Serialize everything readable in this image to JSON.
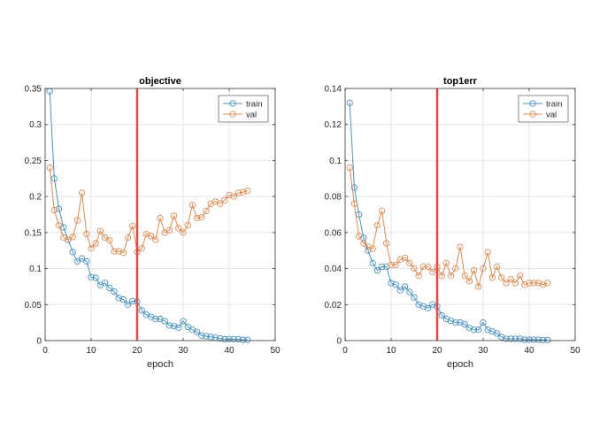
{
  "colors": {
    "train": "#4a90bd",
    "val": "#d98b55",
    "marker_line": "#e8474a",
    "grid": "#e6e6e6",
    "axis": "#333333",
    "text": "#262626"
  },
  "chart_data": [
    {
      "type": "line",
      "title": "objective",
      "xlabel": "epoch",
      "ylabel": "",
      "xlim": [
        0,
        50
      ],
      "ylim": [
        0,
        0.35
      ],
      "xticks": [
        0,
        10,
        20,
        30,
        40,
        50
      ],
      "yticks": [
        0,
        0.05,
        0.1,
        0.15,
        0.2,
        0.25,
        0.3,
        0.35
      ],
      "xtick_labels": [
        "0",
        "10",
        "20",
        "30",
        "40",
        "50"
      ],
      "ytick_labels": [
        "0",
        "0.05",
        "0.1",
        "0.15",
        "0.2",
        "0.25",
        "0.3",
        "0.35"
      ],
      "grid": true,
      "legend": "top-right",
      "vertical_marker_x": 20,
      "x": [
        1,
        2,
        3,
        4,
        5,
        6,
        7,
        8,
        9,
        10,
        11,
        12,
        13,
        14,
        15,
        16,
        17,
        18,
        19,
        20,
        21,
        22,
        23,
        24,
        25,
        26,
        27,
        28,
        29,
        30,
        31,
        32,
        33,
        34,
        35,
        36,
        37,
        38,
        39,
        40,
        41,
        42,
        43,
        44
      ],
      "series": [
        {
          "name": "train",
          "values": [
            0.346,
            0.225,
            0.183,
            0.157,
            0.14,
            0.123,
            0.11,
            0.114,
            0.11,
            0.088,
            0.087,
            0.077,
            0.08,
            0.073,
            0.068,
            0.059,
            0.057,
            0.05,
            0.055,
            0.054,
            0.042,
            0.036,
            0.033,
            0.03,
            0.03,
            0.027,
            0.021,
            0.02,
            0.018,
            0.027,
            0.019,
            0.015,
            0.012,
            0.007,
            0.006,
            0.005,
            0.004,
            0.003,
            0.002,
            0.002,
            0.002,
            0.002,
            0.001,
            0.001
          ]
        },
        {
          "name": "val",
          "values": [
            0.24,
            0.181,
            0.16,
            0.143,
            0.14,
            0.144,
            0.167,
            0.205,
            0.148,
            0.128,
            0.135,
            0.152,
            0.143,
            0.139,
            0.124,
            0.124,
            0.122,
            0.143,
            0.159,
            0.123,
            0.128,
            0.148,
            0.145,
            0.14,
            0.17,
            0.15,
            0.153,
            0.173,
            0.156,
            0.15,
            0.16,
            0.188,
            0.17,
            0.171,
            0.18,
            0.19,
            0.193,
            0.19,
            0.195,
            0.202,
            0.2,
            0.205,
            0.206,
            0.208
          ]
        }
      ]
    },
    {
      "type": "line",
      "title": "top1err",
      "xlabel": "epoch",
      "ylabel": "",
      "xlim": [
        0,
        50
      ],
      "ylim": [
        0,
        0.14
      ],
      "xticks": [
        0,
        10,
        20,
        30,
        40,
        50
      ],
      "yticks": [
        0,
        0.02,
        0.04,
        0.06,
        0.08,
        0.1,
        0.12,
        0.14
      ],
      "xtick_labels": [
        "0",
        "10",
        "20",
        "30",
        "40",
        "50"
      ],
      "ytick_labels": [
        "0",
        "0.02",
        "0.04",
        "0.06",
        "0.08",
        "0.1",
        "0.12",
        "0.14"
      ],
      "grid": true,
      "legend": "top-right",
      "vertical_marker_x": 20,
      "x": [
        1,
        2,
        3,
        4,
        5,
        6,
        7,
        8,
        9,
        10,
        11,
        12,
        13,
        14,
        15,
        16,
        17,
        18,
        19,
        20,
        21,
        22,
        23,
        24,
        25,
        26,
        27,
        28,
        29,
        30,
        31,
        32,
        33,
        34,
        35,
        36,
        37,
        38,
        39,
        40,
        41,
        42,
        43,
        44
      ],
      "series": [
        {
          "name": "train",
          "values": [
            0.132,
            0.085,
            0.07,
            0.057,
            0.05,
            0.043,
            0.039,
            0.041,
            0.041,
            0.032,
            0.031,
            0.028,
            0.03,
            0.027,
            0.024,
            0.02,
            0.019,
            0.018,
            0.02,
            0.019,
            0.014,
            0.012,
            0.011,
            0.01,
            0.01,
            0.009,
            0.007,
            0.006,
            0.006,
            0.01,
            0.006,
            0.005,
            0.004,
            0.002,
            0.001,
            0.001,
            0.001,
            0.001,
            0.0005,
            0.0005,
            0.0005,
            0.0005,
            0.0003,
            0.0003
          ]
        },
        {
          "name": "val",
          "values": [
            0.096,
            0.076,
            0.058,
            0.054,
            0.052,
            0.051,
            0.064,
            0.072,
            0.054,
            0.042,
            0.042,
            0.045,
            0.046,
            0.043,
            0.04,
            0.036,
            0.041,
            0.041,
            0.038,
            0.041,
            0.036,
            0.043,
            0.036,
            0.04,
            0.052,
            0.036,
            0.033,
            0.039,
            0.03,
            0.04,
            0.049,
            0.035,
            0.041,
            0.035,
            0.032,
            0.034,
            0.032,
            0.036,
            0.031,
            0.032,
            0.032,
            0.032,
            0.031,
            0.032
          ]
        }
      ]
    }
  ]
}
